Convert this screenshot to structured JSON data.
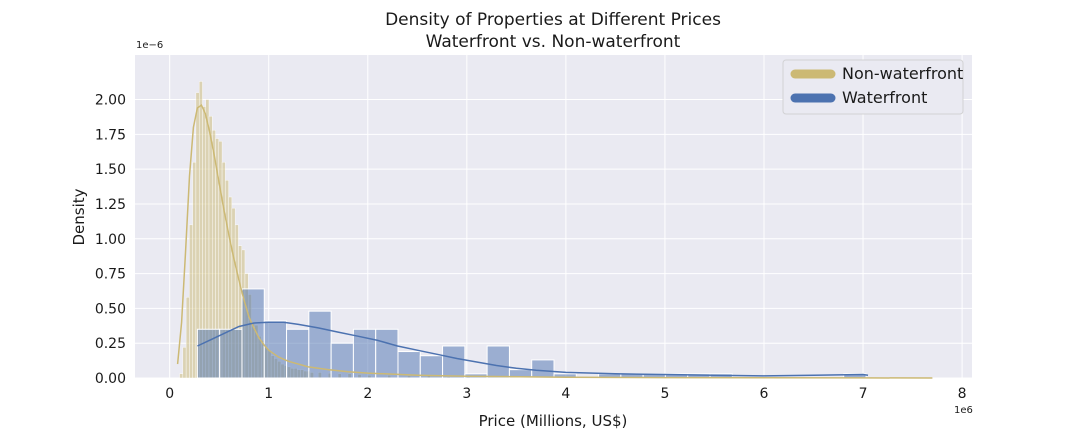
{
  "chart_data": {
    "type": "histogram",
    "title": "Density of Properties at Different Prices",
    "subtitle": "Waterfront vs. Non-waterfront",
    "xlabel": "Price (Millions, US$)",
    "ylabel": "Density",
    "x_offset_label": "1e6",
    "y_offset_label": "1e−6",
    "xlim": [
      -0.35,
      8.1
    ],
    "ylim": [
      0,
      2.32
    ],
    "x_ticks": [
      0,
      1,
      2,
      3,
      4,
      5,
      6,
      7,
      8
    ],
    "x_tick_labels": [
      "0",
      "1",
      "2",
      "3",
      "4",
      "5",
      "6",
      "7",
      "8"
    ],
    "y_ticks": [
      0,
      0.25,
      0.5,
      0.75,
      1.0,
      1.25,
      1.5,
      1.75,
      2.0
    ],
    "y_tick_labels": [
      "0.00",
      "0.25",
      "0.50",
      "0.75",
      "1.00",
      "1.25",
      "1.50",
      "1.75",
      "2.00"
    ],
    "grid": true,
    "legend_position": "top-right",
    "colors": {
      "background": "#eaeaf2",
      "grid": "#ffffff",
      "non_waterfront": "#ccb974",
      "waterfront": "#4c72b0"
    },
    "series": [
      {
        "name": "Non-waterfront",
        "bin_width": 0.033,
        "bins": [
          [
            0.1,
            0.03
          ],
          [
            0.133,
            0.22
          ],
          [
            0.166,
            0.58
          ],
          [
            0.199,
            1.1
          ],
          [
            0.232,
            1.55
          ],
          [
            0.265,
            2.05
          ],
          [
            0.298,
            2.13
          ],
          [
            0.331,
            1.95
          ],
          [
            0.364,
            2.0
          ],
          [
            0.397,
            1.88
          ],
          [
            0.43,
            1.78
          ],
          [
            0.463,
            1.72
          ],
          [
            0.496,
            1.7
          ],
          [
            0.529,
            1.55
          ],
          [
            0.562,
            1.42
          ],
          [
            0.595,
            1.3
          ],
          [
            0.628,
            1.22
          ],
          [
            0.661,
            1.1
          ],
          [
            0.694,
            0.95
          ],
          [
            0.727,
            0.92
          ],
          [
            0.76,
            0.75
          ],
          [
            0.793,
            0.6
          ],
          [
            0.826,
            0.4
          ],
          [
            0.859,
            0.38
          ],
          [
            0.892,
            0.3
          ],
          [
            0.925,
            0.27
          ],
          [
            0.958,
            0.22
          ],
          [
            0.991,
            0.2
          ],
          [
            1.024,
            0.16
          ],
          [
            1.057,
            0.14
          ],
          [
            1.09,
            0.12
          ],
          [
            1.123,
            0.1
          ],
          [
            1.156,
            0.09
          ],
          [
            1.189,
            0.08
          ],
          [
            1.222,
            0.07
          ],
          [
            1.255,
            0.07
          ],
          [
            1.288,
            0.06
          ],
          [
            1.321,
            0.06
          ],
          [
            1.354,
            0.05
          ],
          [
            1.387,
            0.05
          ],
          [
            1.42,
            0.04
          ],
          [
            1.5,
            0.04
          ],
          [
            1.6,
            0.035
          ],
          [
            1.7,
            0.03
          ],
          [
            1.8,
            0.03
          ],
          [
            1.9,
            0.025
          ],
          [
            2.0,
            0.02
          ],
          [
            2.2,
            0.02
          ],
          [
            2.4,
            0.015
          ],
          [
            2.6,
            0.015
          ],
          [
            2.8,
            0.01
          ],
          [
            3.0,
            0.01
          ]
        ],
        "kde": [
          [
            0.08,
            0.1
          ],
          [
            0.12,
            0.4
          ],
          [
            0.16,
            0.9
          ],
          [
            0.2,
            1.45
          ],
          [
            0.24,
            1.8
          ],
          [
            0.28,
            1.94
          ],
          [
            0.32,
            1.96
          ],
          [
            0.36,
            1.9
          ],
          [
            0.4,
            1.78
          ],
          [
            0.45,
            1.6
          ],
          [
            0.5,
            1.4
          ],
          [
            0.55,
            1.2
          ],
          [
            0.6,
            1.02
          ],
          [
            0.65,
            0.85
          ],
          [
            0.7,
            0.7
          ],
          [
            0.75,
            0.56
          ],
          [
            0.8,
            0.44
          ],
          [
            0.85,
            0.36
          ],
          [
            0.9,
            0.29
          ],
          [
            0.95,
            0.24
          ],
          [
            1.0,
            0.2
          ],
          [
            1.1,
            0.15
          ],
          [
            1.2,
            0.12
          ],
          [
            1.4,
            0.08
          ],
          [
            1.6,
            0.06
          ],
          [
            1.8,
            0.045
          ],
          [
            2.0,
            0.035
          ],
          [
            2.5,
            0.02
          ],
          [
            3.0,
            0.012
          ],
          [
            4.0,
            0.006
          ],
          [
            5.0,
            0.003
          ],
          [
            6.0,
            0.002
          ],
          [
            7.0,
            0.001
          ],
          [
            7.7,
            0.0
          ]
        ]
      },
      {
        "name": "Waterfront",
        "bin_width": 0.225,
        "bins": [
          [
            0.28,
            0.35
          ],
          [
            0.505,
            0.35
          ],
          [
            0.73,
            0.64
          ],
          [
            0.955,
            0.41
          ],
          [
            1.18,
            0.35
          ],
          [
            1.405,
            0.48
          ],
          [
            1.63,
            0.25
          ],
          [
            1.855,
            0.35
          ],
          [
            2.08,
            0.35
          ],
          [
            2.305,
            0.19
          ],
          [
            2.53,
            0.16
          ],
          [
            2.755,
            0.23
          ],
          [
            2.98,
            0.03
          ],
          [
            3.205,
            0.23
          ],
          [
            3.43,
            0.06
          ],
          [
            3.655,
            0.13
          ],
          [
            3.88,
            0.03
          ],
          [
            4.105,
            0.0
          ],
          [
            4.33,
            0.03
          ],
          [
            4.555,
            0.03
          ],
          [
            4.78,
            0.03
          ],
          [
            5.005,
            0.03
          ],
          [
            5.23,
            0.03
          ],
          [
            5.455,
            0.03
          ],
          [
            5.68,
            0.0
          ],
          [
            5.905,
            0.0
          ],
          [
            6.13,
            0.0
          ],
          [
            6.355,
            0.0
          ],
          [
            6.58,
            0.0
          ],
          [
            6.805,
            0.03
          ]
        ],
        "kde": [
          [
            0.28,
            0.23
          ],
          [
            0.4,
            0.27
          ],
          [
            0.55,
            0.32
          ],
          [
            0.7,
            0.37
          ],
          [
            0.85,
            0.395
          ],
          [
            1.0,
            0.4
          ],
          [
            1.15,
            0.4
          ],
          [
            1.3,
            0.385
          ],
          [
            1.5,
            0.36
          ],
          [
            1.7,
            0.33
          ],
          [
            1.9,
            0.3
          ],
          [
            2.1,
            0.27
          ],
          [
            2.3,
            0.23
          ],
          [
            2.5,
            0.2
          ],
          [
            2.7,
            0.17
          ],
          [
            2.9,
            0.14
          ],
          [
            3.1,
            0.115
          ],
          [
            3.3,
            0.09
          ],
          [
            3.5,
            0.07
          ],
          [
            3.7,
            0.055
          ],
          [
            4.0,
            0.04
          ],
          [
            4.5,
            0.03
          ],
          [
            5.0,
            0.025
          ],
          [
            5.5,
            0.02
          ],
          [
            6.0,
            0.015
          ],
          [
            6.5,
            0.02
          ],
          [
            7.0,
            0.025
          ],
          [
            7.05,
            0.02
          ]
        ]
      }
    ]
  }
}
